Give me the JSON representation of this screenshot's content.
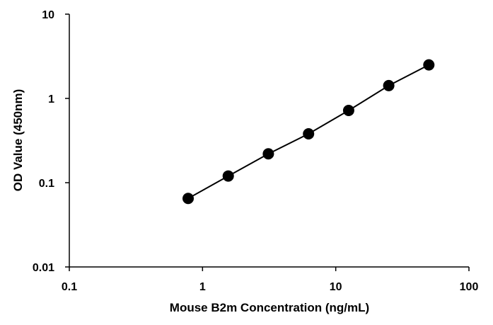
{
  "chart_data": {
    "type": "line",
    "title": "",
    "xlabel": "Mouse B2m Concentration  (ng/mL)",
    "ylabel": "OD Value (450nm)",
    "x_scale": "log",
    "y_scale": "log",
    "xlim": [
      0.1,
      100
    ],
    "ylim": [
      0.01,
      10
    ],
    "x_ticks": [
      "0.1",
      "1",
      "10",
      "100"
    ],
    "y_ticks": [
      "0.01",
      "0.1",
      "1",
      "10"
    ],
    "grid": false,
    "legend": "none",
    "series": [
      {
        "x": [
          0.78,
          1.56,
          3.12,
          6.25,
          12.5,
          25,
          50
        ],
        "y": [
          0.065,
          0.12,
          0.22,
          0.38,
          0.72,
          1.42,
          2.5
        ],
        "color": "#000000",
        "marker": "circle"
      }
    ]
  }
}
